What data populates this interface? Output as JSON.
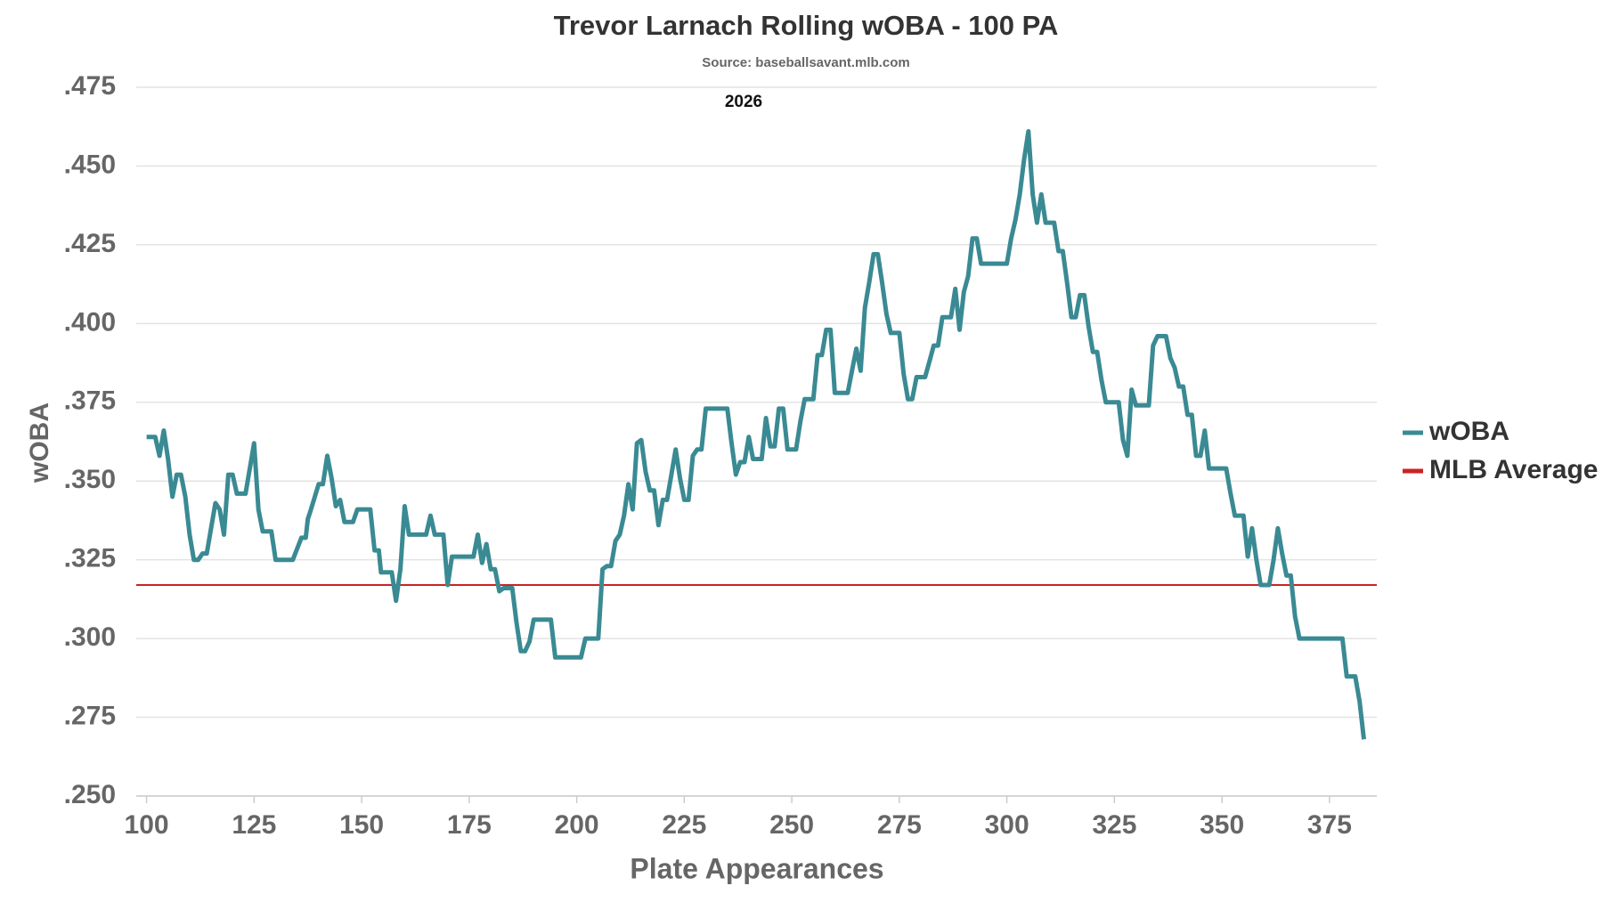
{
  "chart_data": {
    "type": "line",
    "title": "Trevor Larnach Rolling wOBA - 100 PA",
    "subtitle": "Source: baseballsavant.mlb.com",
    "annotation": "2026",
    "x_label": "Plate Appearances",
    "y_label": "wOBA",
    "xlim": [
      97.6,
      386
    ],
    "ylim": [
      0.25,
      0.475
    ],
    "xticks": [
      100,
      125,
      150,
      175,
      200,
      225,
      250,
      275,
      300,
      325,
      350,
      375
    ],
    "yticks": [
      {
        "value": 0.25,
        "label": ".250"
      },
      {
        "value": 0.275,
        "label": ".275"
      },
      {
        "value": 0.3,
        "label": ".300"
      },
      {
        "value": 0.325,
        "label": ".325"
      },
      {
        "value": 0.35,
        "label": ".350"
      },
      {
        "value": 0.375,
        "label": ".375"
      },
      {
        "value": 0.4,
        "label": ".400"
      },
      {
        "value": 0.425,
        "label": ".425"
      },
      {
        "value": 0.45,
        "label": ".450"
      },
      {
        "value": 0.475,
        "label": ".475"
      }
    ],
    "grid": true,
    "legend": "right",
    "series": [
      {
        "name": "wOBA",
        "color": "#3a8a93",
        "width": 5,
        "x": [
          100,
          102,
          103,
          104,
          105,
          106,
          107,
          108,
          109,
          110,
          111,
          112,
          113,
          114,
          115,
          116,
          117,
          118,
          119,
          120,
          121,
          123,
          125,
          126,
          127,
          129,
          130,
          134,
          136,
          137,
          137.5,
          138,
          140,
          141,
          142,
          143,
          144,
          145,
          146,
          148,
          149,
          152,
          153,
          154,
          154.5,
          157,
          158,
          159,
          160,
          161,
          165,
          166,
          167,
          169,
          170,
          171,
          176,
          177,
          178,
          179,
          180,
          181,
          182,
          183,
          185,
          186,
          187,
          188,
          189,
          190,
          194,
          195,
          201,
          202,
          205,
          206,
          207,
          208,
          209,
          210,
          211,
          212,
          213,
          214,
          215,
          216,
          217,
          218,
          219,
          220,
          221,
          222,
          223,
          224,
          225,
          226,
          227,
          228,
          229,
          230,
          235,
          236,
          237,
          238,
          239,
          240,
          241,
          243,
          244,
          245,
          246,
          247,
          248,
          249,
          251,
          252,
          253,
          255,
          256,
          257,
          258,
          259,
          260,
          263,
          264,
          265,
          266,
          267,
          268,
          269,
          270,
          271,
          272,
          273,
          275,
          276,
          277,
          278,
          279,
          281,
          282,
          283,
          284,
          285,
          287,
          288,
          289,
          290,
          291,
          292,
          293,
          294,
          300,
          301,
          302,
          303,
          304,
          305,
          306,
          307,
          308,
          309,
          311,
          312,
          313,
          314,
          315,
          316,
          317,
          318,
          319,
          320,
          321,
          322,
          323,
          326,
          327,
          328,
          329,
          330,
          333,
          334,
          335,
          337,
          338,
          339,
          340,
          341,
          342,
          343,
          344,
          345,
          346,
          347,
          351,
          352,
          353,
          355,
          356,
          357,
          358,
          359,
          361,
          362,
          363,
          364,
          365,
          366,
          367,
          368,
          378,
          379,
          381,
          382,
          383
        ],
        "values": [
          0.364,
          0.364,
          0.358,
          0.366,
          0.357,
          0.345,
          0.352,
          0.352,
          0.345,
          0.333,
          0.325,
          0.325,
          0.327,
          0.327,
          0.335,
          0.343,
          0.341,
          0.333,
          0.352,
          0.352,
          0.346,
          0.346,
          0.362,
          0.341,
          0.334,
          0.334,
          0.325,
          0.325,
          0.332,
          0.332,
          0.338,
          0.34,
          0.349,
          0.349,
          0.358,
          0.351,
          0.342,
          0.344,
          0.337,
          0.337,
          0.341,
          0.341,
          0.328,
          0.328,
          0.321,
          0.321,
          0.312,
          0.322,
          0.342,
          0.333,
          0.333,
          0.339,
          0.333,
          0.333,
          0.317,
          0.326,
          0.326,
          0.333,
          0.324,
          0.33,
          0.322,
          0.322,
          0.315,
          0.316,
          0.316,
          0.305,
          0.296,
          0.296,
          0.299,
          0.306,
          0.306,
          0.294,
          0.294,
          0.3,
          0.3,
          0.322,
          0.323,
          0.323,
          0.331,
          0.333,
          0.339,
          0.349,
          0.341,
          0.362,
          0.363,
          0.353,
          0.347,
          0.347,
          0.336,
          0.344,
          0.344,
          0.352,
          0.36,
          0.351,
          0.344,
          0.344,
          0.358,
          0.36,
          0.36,
          0.373,
          0.373,
          0.362,
          0.352,
          0.356,
          0.356,
          0.364,
          0.357,
          0.357,
          0.37,
          0.361,
          0.361,
          0.373,
          0.373,
          0.36,
          0.36,
          0.369,
          0.376,
          0.376,
          0.39,
          0.39,
          0.398,
          0.398,
          0.378,
          0.378,
          0.385,
          0.392,
          0.385,
          0.405,
          0.413,
          0.422,
          0.422,
          0.413,
          0.403,
          0.397,
          0.397,
          0.384,
          0.376,
          0.376,
          0.383,
          0.383,
          0.388,
          0.393,
          0.393,
          0.402,
          0.402,
          0.411,
          0.398,
          0.41,
          0.415,
          0.427,
          0.427,
          0.419,
          0.419,
          0.427,
          0.433,
          0.441,
          0.452,
          0.461,
          0.441,
          0.432,
          0.441,
          0.432,
          0.432,
          0.423,
          0.423,
          0.413,
          0.402,
          0.402,
          0.409,
          0.409,
          0.399,
          0.391,
          0.391,
          0.382,
          0.375,
          0.375,
          0.363,
          0.358,
          0.379,
          0.374,
          0.374,
          0.393,
          0.396,
          0.396,
          0.389,
          0.386,
          0.38,
          0.38,
          0.371,
          0.371,
          0.358,
          0.358,
          0.366,
          0.354,
          0.354,
          0.346,
          0.339,
          0.339,
          0.326,
          0.335,
          0.325,
          0.317,
          0.317,
          0.325,
          0.335,
          0.327,
          0.32,
          0.32,
          0.307,
          0.3,
          0.3,
          0.288,
          0.288,
          0.28,
          0.268
        ]
      },
      {
        "name": "MLB Average",
        "color": "#cc2222",
        "width": 2,
        "x": [
          97.6,
          386
        ],
        "values": [
          0.317,
          0.317
        ]
      }
    ]
  }
}
